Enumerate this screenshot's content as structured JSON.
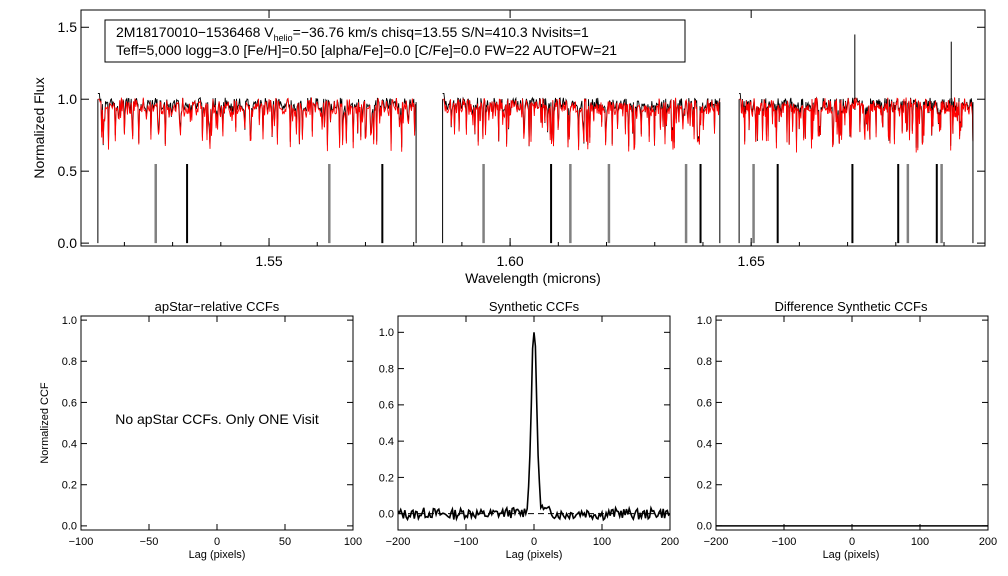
{
  "chart_data": [
    {
      "type": "line",
      "id": "spectrum",
      "info_line1_prefix": "2M18170010−1536468  V",
      "info_line1_sub": "helio",
      "info_line1_suffix": "=−36.76 km/s  chisq=13.55  S/N=410.3  Nvisits=1",
      "info_line2": "Teff=5,000 logg=3.0 [Fe/H]=0.50 [alpha/Fe]=0.0 [C/Fe]=0.0 FW=22 AUTOFW=21",
      "xlabel": "Wavelength (microns)",
      "ylabel": "Normalized Flux",
      "xlim": [
        1.511,
        1.6985
      ],
      "ylim": [
        -0.02,
        1.62
      ],
      "xticks": [
        "1.55",
        "1.60",
        "1.65"
      ],
      "xtick_values": [
        1.55,
        1.6,
        1.65
      ],
      "yticks": [
        "0.0",
        "0.5",
        "1.0",
        "1.5"
      ],
      "ytick_values": [
        0.0,
        0.5,
        1.0,
        1.5
      ],
      "chips": [
        [
          1.5145,
          1.5805
        ],
        [
          1.586,
          1.6435
        ],
        [
          1.6475,
          1.696
        ]
      ],
      "deep_lines_black": [
        1.533,
        1.5735,
        1.6085,
        1.6395,
        1.6555,
        1.671,
        1.6805,
        1.6885
      ],
      "deep_lines_gray": [
        1.5265,
        1.5625,
        1.5945,
        1.6125,
        1.6205,
        1.6365,
        1.6505,
        1.6825,
        1.6895
      ],
      "spikes": [
        [
          1.6715,
          1.45
        ],
        [
          1.6915,
          1.4
        ]
      ],
      "series": [
        {
          "name": "apStar",
          "color": "#000000"
        },
        {
          "name": "synthetic",
          "color": "#ff0000"
        }
      ]
    },
    {
      "type": "line",
      "id": "apstar_ccf",
      "title": "apStar−relative CCFs",
      "xlabel": "Lag (pixels)",
      "ylabel": "Normalized CCF",
      "xlim": [
        -100,
        100
      ],
      "ylim": [
        -0.02,
        1.02
      ],
      "xticks": [
        "−100",
        "−50",
        "0",
        "50",
        "100"
      ],
      "xtick_values": [
        -100,
        -50,
        0,
        50,
        100
      ],
      "yticks": [
        "0.0",
        "0.2",
        "0.4",
        "0.6",
        "0.8",
        "1.0"
      ],
      "ytick_values": [
        0.0,
        0.2,
        0.4,
        0.6,
        0.8,
        1.0
      ],
      "note": "No apStar CCFs.  Only ONE Visit"
    },
    {
      "type": "line",
      "id": "synthetic_ccf",
      "title": "Synthetic CCFs",
      "xlabel": "Lag (pixels)",
      "xlim": [
        -200,
        200
      ],
      "ylim": [
        -0.09,
        1.09
      ],
      "xticks": [
        "−200",
        "−100",
        "0",
        "100",
        "200"
      ],
      "xtick_values": [
        -200,
        -100,
        0,
        100,
        200
      ],
      "yticks": [
        "0.0",
        "0.2",
        "0.4",
        "0.6",
        "0.8",
        "1.0"
      ],
      "ytick_values": [
        0.0,
        0.2,
        0.4,
        0.6,
        0.8,
        1.0
      ],
      "peak_lag": 0,
      "peak_value": 1.0,
      "baseline": 0.0,
      "series": [
        {
          "name": "synthetic CCF",
          "color": "#000000"
        }
      ]
    },
    {
      "type": "line",
      "id": "difference_ccf",
      "title": "Difference Synthetic CCFs",
      "xlabel": "Lag (pixels)",
      "xlim": [
        -200,
        200
      ],
      "ylim": [
        -0.02,
        1.02
      ],
      "xticks": [
        "−200",
        "−100",
        "0",
        "100",
        "200"
      ],
      "xtick_values": [
        -200,
        -100,
        0,
        100,
        200
      ],
      "yticks": [
        "0.0",
        "0.2",
        "0.4",
        "0.6",
        "0.8",
        "1.0"
      ],
      "ytick_values": [
        0.0,
        0.2,
        0.4,
        0.6,
        0.8,
        1.0
      ],
      "series": [
        {
          "name": "difference",
          "color": "#000000",
          "values": [
            0,
            0
          ]
        }
      ]
    }
  ]
}
